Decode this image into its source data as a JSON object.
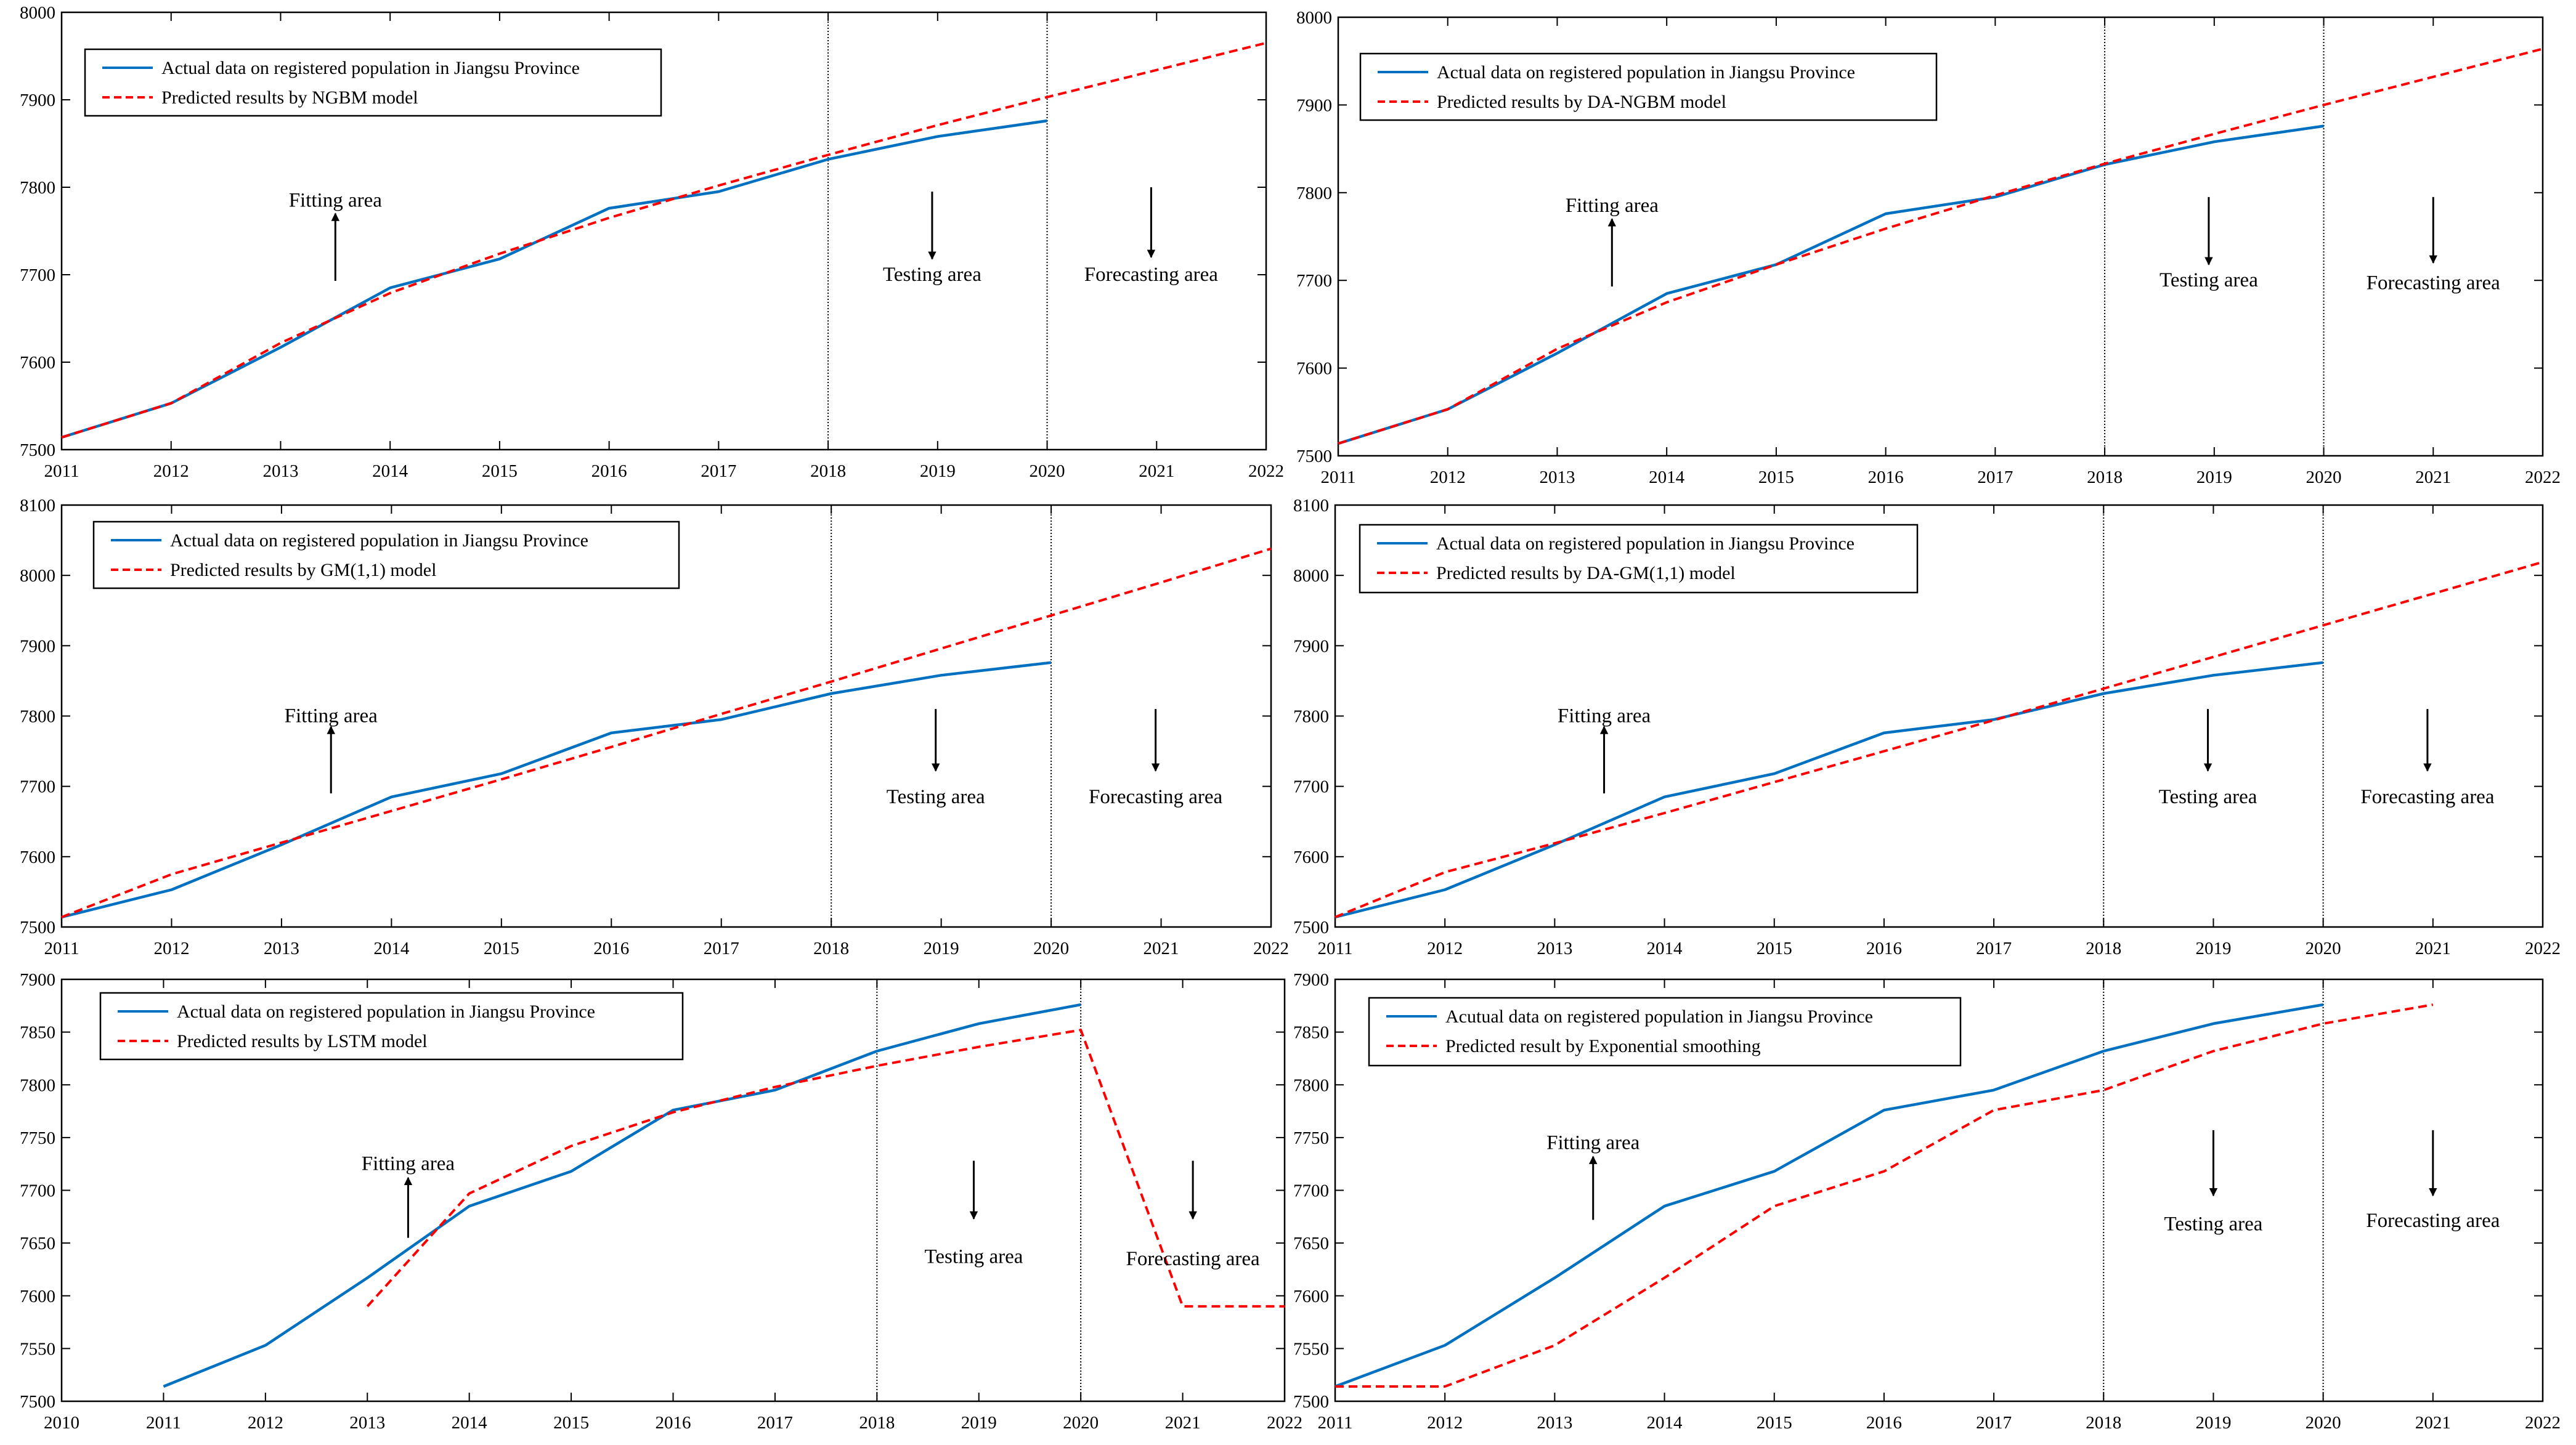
{
  "colors": {
    "actual": "#0070c0",
    "predicted": "#ff0000",
    "axis": "#000000",
    "divider": "#000000"
  },
  "chart_data": [
    {
      "type": "line",
      "title": "",
      "xlabel": "",
      "ylabel": "",
      "xlim": [
        2011,
        2022
      ],
      "ylim": [
        7500,
        8000
      ],
      "x_ticks": [
        2011,
        2012,
        2013,
        2014,
        2015,
        2016,
        2017,
        2018,
        2019,
        2020,
        2021,
        2022
      ],
      "y_ticks": [
        7500,
        7600,
        7700,
        7800,
        7900,
        8000
      ],
      "grid": false,
      "legend_position": "top-left",
      "series": [
        {
          "name": "Actual data on registered population in Jiangsu Province",
          "style": "solid",
          "x": [
            2011,
            2012,
            2013,
            2014,
            2015,
            2016,
            2017,
            2018,
            2019,
            2020
          ],
          "y": [
            7514,
            7553,
            7617,
            7685,
            7718,
            7776,
            7795,
            7832,
            7858,
            7876
          ]
        },
        {
          "name": "Predicted results by NGBM model",
          "style": "dashed",
          "x": [
            2011,
            2012,
            2013,
            2014,
            2015,
            2016,
            2017,
            2018,
            2019,
            2020,
            2021,
            2022
          ],
          "y": [
            7514,
            7553,
            7622,
            7679,
            7724,
            7765,
            7802,
            7837,
            7871,
            7903,
            7934,
            7965
          ]
        }
      ],
      "dividers": [
        2018,
        2020
      ],
      "annotations": [
        {
          "text": "Fitting area",
          "x": 2013.5,
          "y": 7785,
          "arrow": "up",
          "arrow_x": 2013.5,
          "arrow_from": 7693,
          "arrow_to": 7770
        },
        {
          "text": "Testing area",
          "x": 2018.95,
          "y": 7700,
          "arrow": "down",
          "arrow_x": 2018.95,
          "arrow_from": 7795,
          "arrow_to": 7718
        },
        {
          "text": "Forecasting area",
          "x": 2020.95,
          "y": 7700,
          "arrow": "down",
          "arrow_x": 2020.95,
          "arrow_from": 7800,
          "arrow_to": 7720
        }
      ]
    },
    {
      "type": "line",
      "title": "",
      "xlabel": "",
      "ylabel": "",
      "xlim": [
        2011,
        2022
      ],
      "ylim": [
        7500,
        8000
      ],
      "x_ticks": [
        2011,
        2012,
        2013,
        2014,
        2015,
        2016,
        2017,
        2018,
        2019,
        2020,
        2021,
        2022
      ],
      "y_ticks": [
        7500,
        7600,
        7700,
        7800,
        7900,
        8000
      ],
      "grid": false,
      "legend_position": "top-left",
      "series": [
        {
          "name": "Actual data on registered population in Jiangsu Province",
          "style": "solid",
          "x": [
            2011,
            2012,
            2013,
            2014,
            2015,
            2016,
            2017,
            2018,
            2019,
            2020
          ],
          "y": [
            7514,
            7553,
            7617,
            7685,
            7718,
            7776,
            7795,
            7832,
            7858,
            7876
          ]
        },
        {
          "name": "Predicted results by DA-NGBM model",
          "style": "dashed",
          "x": [
            2011,
            2012,
            2013,
            2014,
            2015,
            2016,
            2017,
            2018,
            2019,
            2020,
            2021,
            2022
          ],
          "y": [
            7514,
            7553,
            7622,
            7675,
            7718,
            7759,
            7797,
            7833,
            7867,
            7900,
            7932,
            7964
          ]
        }
      ],
      "dividers": [
        2018,
        2020
      ],
      "annotations": [
        {
          "text": "Fitting area",
          "x": 2013.5,
          "y": 7785,
          "arrow": "up",
          "arrow_x": 2013.5,
          "arrow_from": 7693,
          "arrow_to": 7770
        },
        {
          "text": "Testing area",
          "x": 2018.95,
          "y": 7700,
          "arrow": "down",
          "arrow_x": 2018.95,
          "arrow_from": 7795,
          "arrow_to": 7718
        },
        {
          "text": "Forecasting area",
          "x": 2021.0,
          "y": 7697,
          "arrow": "down",
          "arrow_x": 2021.0,
          "arrow_from": 7795,
          "arrow_to": 7720
        }
      ]
    },
    {
      "type": "line",
      "title": "",
      "xlabel": "",
      "ylabel": "",
      "xlim": [
        2011,
        2022
      ],
      "ylim": [
        7500,
        8100
      ],
      "x_ticks": [
        2011,
        2012,
        2013,
        2014,
        2015,
        2016,
        2017,
        2018,
        2019,
        2020,
        2021,
        2022
      ],
      "y_ticks": [
        7500,
        7600,
        7700,
        7800,
        7900,
        8000,
        8100
      ],
      "grid": false,
      "legend_position": "top-left",
      "series": [
        {
          "name": "Actual data on registered population in Jiangsu Province",
          "style": "solid",
          "x": [
            2011,
            2012,
            2013,
            2014,
            2015,
            2016,
            2017,
            2018,
            2019,
            2020
          ],
          "y": [
            7514,
            7553,
            7617,
            7685,
            7718,
            7776,
            7795,
            7832,
            7858,
            7876
          ]
        },
        {
          "name": "Predicted results by GM(1,1) model",
          "style": "dashed",
          "x": [
            2011,
            2012,
            2013,
            2014,
            2015,
            2016,
            2017,
            2018,
            2019,
            2020,
            2021,
            2022
          ],
          "y": [
            7514,
            7575,
            7620,
            7665,
            7710,
            7756,
            7803,
            7849,
            7896,
            7943,
            7990,
            8038
          ]
        }
      ],
      "dividers": [
        2018,
        2020
      ],
      "annotations": [
        {
          "text": "Fitting area",
          "x": 2013.45,
          "y": 7800,
          "arrow": "up",
          "arrow_x": 2013.45,
          "arrow_from": 7690,
          "arrow_to": 7785
        },
        {
          "text": "Testing area",
          "x": 2018.95,
          "y": 7685,
          "arrow": "down",
          "arrow_x": 2018.95,
          "arrow_from": 7810,
          "arrow_to": 7722
        },
        {
          "text": "Forecasting area",
          "x": 2020.95,
          "y": 7685,
          "arrow": "down",
          "arrow_x": 2020.95,
          "arrow_from": 7810,
          "arrow_to": 7722
        }
      ]
    },
    {
      "type": "line",
      "title": "",
      "xlabel": "",
      "ylabel": "",
      "xlim": [
        2011,
        2022
      ],
      "ylim": [
        7500,
        8100
      ],
      "x_ticks": [
        2011,
        2012,
        2013,
        2014,
        2015,
        2016,
        2017,
        2018,
        2019,
        2020,
        2021,
        2022
      ],
      "y_ticks": [
        7500,
        7600,
        7700,
        7800,
        7900,
        8000,
        8100
      ],
      "grid": false,
      "legend_position": "top-left",
      "series": [
        {
          "name": "Actual data on registered population in Jiangsu Province",
          "style": "solid",
          "x": [
            2011,
            2012,
            2013,
            2014,
            2015,
            2016,
            2017,
            2018,
            2019,
            2020
          ],
          "y": [
            7514,
            7553,
            7617,
            7685,
            7718,
            7776,
            7795,
            7832,
            7858,
            7876
          ]
        },
        {
          "name": "Predicted results by DA-GM(1,1) model",
          "style": "dashed",
          "x": [
            2011,
            2012,
            2013,
            2014,
            2015,
            2016,
            2017,
            2018,
            2019,
            2020,
            2021,
            2022
          ],
          "y": [
            7514,
            7578,
            7619,
            7662,
            7706,
            7750,
            7794,
            7839,
            7884,
            7929,
            7974,
            8019
          ]
        }
      ],
      "dividers": [
        2018,
        2020
      ],
      "annotations": [
        {
          "text": "Fitting area",
          "x": 2013.45,
          "y": 7800,
          "arrow": "up",
          "arrow_x": 2013.45,
          "arrow_from": 7690,
          "arrow_to": 7785
        },
        {
          "text": "Testing area",
          "x": 2018.95,
          "y": 7685,
          "arrow": "down",
          "arrow_x": 2018.95,
          "arrow_from": 7810,
          "arrow_to": 7722
        },
        {
          "text": "Forecasting area",
          "x": 2020.95,
          "y": 7685,
          "arrow": "down",
          "arrow_x": 2020.95,
          "arrow_from": 7810,
          "arrow_to": 7722
        }
      ]
    },
    {
      "type": "line",
      "title": "",
      "xlabel": "",
      "ylabel": "",
      "xlim": [
        2010,
        2022
      ],
      "ylim": [
        7500,
        7900
      ],
      "x_ticks": [
        2010,
        2011,
        2012,
        2013,
        2014,
        2015,
        2016,
        2017,
        2018,
        2019,
        2020,
        2021,
        2022
      ],
      "y_ticks": [
        7500,
        7550,
        7600,
        7650,
        7700,
        7750,
        7800,
        7850,
        7900
      ],
      "grid": false,
      "legend_position": "top-left",
      "series": [
        {
          "name": "Actual data on registered population in Jiangsu Province",
          "style": "solid",
          "x": [
            2011,
            2012,
            2013,
            2014,
            2015,
            2016,
            2017,
            2018,
            2019,
            2020
          ],
          "y": [
            7514,
            7553,
            7617,
            7685,
            7718,
            7776,
            7795,
            7832,
            7858,
            7876
          ]
        },
        {
          "name": "Predicted results by LSTM model",
          "style": "dashed",
          "x": [
            2013,
            2014,
            2015,
            2016,
            2017,
            2018,
            2019,
            2020,
            2021,
            2022
          ],
          "y": [
            7590,
            7697,
            7742,
            7774,
            7798,
            7818,
            7836,
            7852,
            7590,
            7590
          ]
        }
      ],
      "dividers": [
        2018,
        2020
      ],
      "annotations": [
        {
          "text": "Fitting area",
          "x": 2013.4,
          "y": 7725,
          "arrow": "up",
          "arrow_x": 2013.4,
          "arrow_from": 7655,
          "arrow_to": 7712
        },
        {
          "text": "Testing area",
          "x": 2018.95,
          "y": 7637,
          "arrow": "down",
          "arrow_x": 2018.95,
          "arrow_from": 7728,
          "arrow_to": 7673
        },
        {
          "text": "Forecasting area",
          "x": 2021.1,
          "y": 7635,
          "arrow": "down",
          "arrow_x": 2021.1,
          "arrow_from": 7728,
          "arrow_to": 7673
        }
      ]
    },
    {
      "type": "line",
      "title": "",
      "xlabel": "",
      "ylabel": "",
      "xlim": [
        2011,
        2022
      ],
      "ylim": [
        7500,
        7900
      ],
      "x_ticks": [
        2011,
        2012,
        2013,
        2014,
        2015,
        2016,
        2017,
        2018,
        2019,
        2020,
        2021,
        2022
      ],
      "y_ticks": [
        7500,
        7550,
        7600,
        7650,
        7700,
        7750,
        7800,
        7850,
        7900
      ],
      "grid": false,
      "legend_position": "top-left",
      "series": [
        {
          "name": "Acutual data on registered population in Jiangsu Province",
          "style": "solid",
          "x": [
            2011,
            2012,
            2013,
            2014,
            2015,
            2016,
            2017,
            2018,
            2019,
            2020
          ],
          "y": [
            7514,
            7553,
            7617,
            7685,
            7718,
            7776,
            7795,
            7832,
            7858,
            7876
          ]
        },
        {
          "name": "Predicted result by Exponential smoothing",
          "style": "dashed",
          "x": [
            2011,
            2012,
            2013,
            2014,
            2015,
            2016,
            2017,
            2018,
            2019,
            2020,
            2021
          ],
          "y": [
            7514,
            7514,
            7553,
            7617,
            7685,
            7718,
            7776,
            7795,
            7832,
            7858,
            7876
          ]
        }
      ],
      "dividers": [
        2018,
        2020
      ],
      "annotations": [
        {
          "text": "Fitting area",
          "x": 2013.35,
          "y": 7745,
          "arrow": "up",
          "arrow_x": 2013.35,
          "arrow_from": 7672,
          "arrow_to": 7732
        },
        {
          "text": "Testing area",
          "x": 2019.0,
          "y": 7668,
          "arrow": "down",
          "arrow_x": 2019.0,
          "arrow_from": 7757,
          "arrow_to": 7695
        },
        {
          "text": "Forecasting area",
          "x": 2021.0,
          "y": 7671,
          "arrow": "down",
          "arrow_x": 2021.0,
          "arrow_from": 7757,
          "arrow_to": 7695
        }
      ]
    }
  ]
}
